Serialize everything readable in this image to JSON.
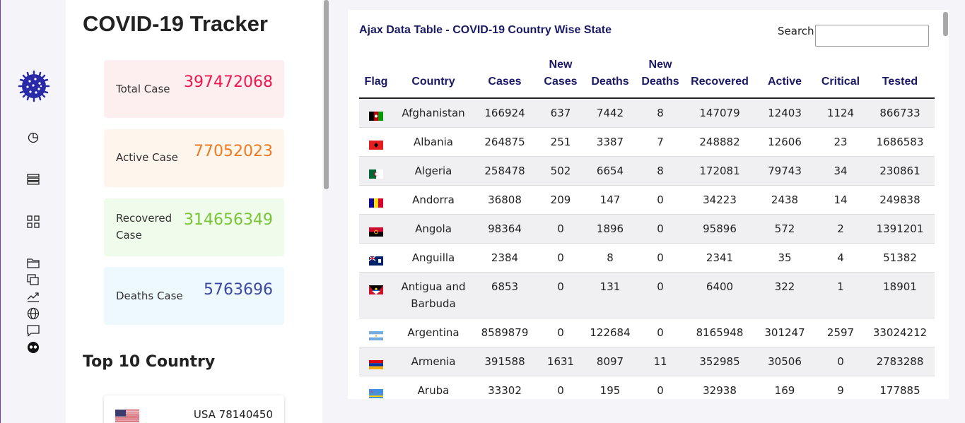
{
  "app": {
    "title": "COVID-19 Tracker"
  },
  "stats": [
    {
      "key": "total",
      "label": "Total Case",
      "value": "397472068",
      "color": "#f0184e",
      "bg": "#fdeeef"
    },
    {
      "key": "active",
      "label": "Active Case",
      "value": "77052023",
      "color": "#f07a1e",
      "bg": "#fef5ec"
    },
    {
      "key": "recovered",
      "label": "Recovered Case",
      "value": "314656349",
      "color": "#7ac436",
      "bg": "#effcec"
    },
    {
      "key": "deaths",
      "label": "Deaths Case",
      "value": "5763696",
      "color": "#3b4aa0",
      "bg": "#eef9fd"
    }
  ],
  "top10": {
    "heading": "Top 10 Country",
    "items": [
      {
        "country": "USA",
        "cases": "78140450",
        "text": "USA 78140450",
        "flag": "us"
      }
    ]
  },
  "table": {
    "title": "Ajax Data Table - COVID-19 Country Wise State",
    "search_label": "Search:",
    "search_value": "",
    "columns": [
      "Flag",
      "Country",
      "Cases",
      "New Cases",
      "Deaths",
      "New Deaths",
      "Recovered",
      "Active",
      "Critical",
      "Tested"
    ],
    "rows": [
      {
        "flag": "af",
        "country": "Afghanistan",
        "cases": "166924",
        "new_cases": "637",
        "deaths": "7442",
        "new_deaths": "8",
        "recovered": "147079",
        "active": "12403",
        "critical": "1124",
        "tested": "866733"
      },
      {
        "flag": "al",
        "country": "Albania",
        "cases": "264875",
        "new_cases": "251",
        "deaths": "3387",
        "new_deaths": "7",
        "recovered": "248882",
        "active": "12606",
        "critical": "23",
        "tested": "1686583"
      },
      {
        "flag": "dz",
        "country": "Algeria",
        "cases": "258478",
        "new_cases": "502",
        "deaths": "6654",
        "new_deaths": "8",
        "recovered": "172081",
        "active": "79743",
        "critical": "34",
        "tested": "230861"
      },
      {
        "flag": "ad",
        "country": "Andorra",
        "cases": "36808",
        "new_cases": "209",
        "deaths": "147",
        "new_deaths": "0",
        "recovered": "34223",
        "active": "2438",
        "critical": "14",
        "tested": "249838"
      },
      {
        "flag": "ao",
        "country": "Angola",
        "cases": "98364",
        "new_cases": "0",
        "deaths": "1896",
        "new_deaths": "0",
        "recovered": "95896",
        "active": "572",
        "critical": "2",
        "tested": "1391201"
      },
      {
        "flag": "ai",
        "country": "Anguilla",
        "cases": "2384",
        "new_cases": "0",
        "deaths": "8",
        "new_deaths": "0",
        "recovered": "2341",
        "active": "35",
        "critical": "4",
        "tested": "51382"
      },
      {
        "flag": "ag",
        "country": "Antigua and Barbuda",
        "cases": "6853",
        "new_cases": "0",
        "deaths": "131",
        "new_deaths": "0",
        "recovered": "6400",
        "active": "322",
        "critical": "1",
        "tested": "18901"
      },
      {
        "flag": "ar",
        "country": "Argentina",
        "cases": "8589879",
        "new_cases": "0",
        "deaths": "122684",
        "new_deaths": "0",
        "recovered": "8165948",
        "active": "301247",
        "critical": "2597",
        "tested": "33024212"
      },
      {
        "flag": "am",
        "country": "Armenia",
        "cases": "391588",
        "new_cases": "1631",
        "deaths": "8097",
        "new_deaths": "11",
        "recovered": "352985",
        "active": "30506",
        "critical": "0",
        "tested": "2783288"
      },
      {
        "flag": "aw",
        "country": "Aruba",
        "cases": "33302",
        "new_cases": "0",
        "deaths": "195",
        "new_deaths": "0",
        "recovered": "32938",
        "active": "169",
        "critical": "9",
        "tested": "177885"
      }
    ]
  },
  "nav_icons": [
    "virus-logo-icon",
    "pie-chart-icon",
    "list-icon",
    "grid-icon",
    "folder-icon",
    "copy-icon",
    "trend-icon",
    "globe-icon",
    "chat-icon",
    "mask-icon"
  ]
}
